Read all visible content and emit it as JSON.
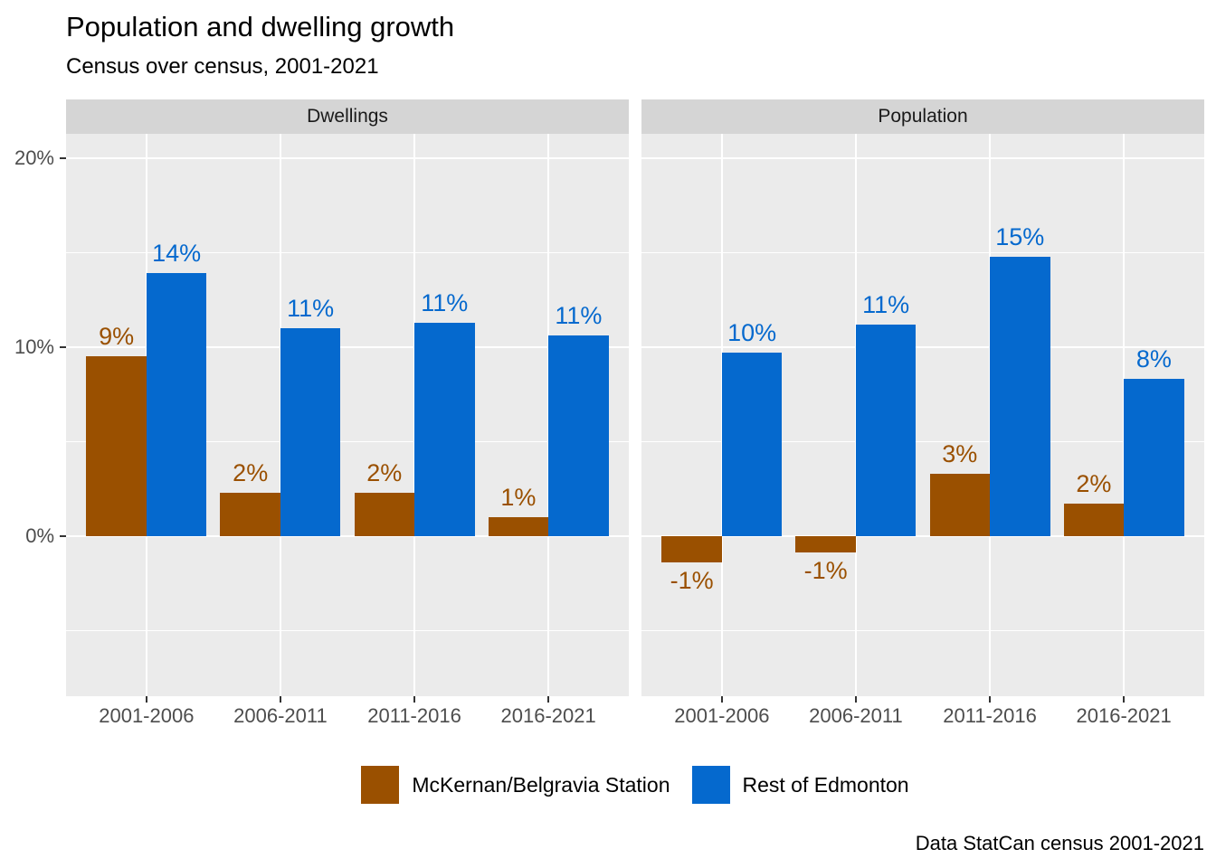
{
  "chart_data": {
    "type": "bar",
    "title": "Population and dwelling growth",
    "subtitle": "Census over census, 2001-2021",
    "caption": "Data StatCan census 2001-2021",
    "categories": [
      "2001-2006",
      "2006-2011",
      "2011-2016",
      "2016-2021"
    ],
    "y_axis": {
      "tick_labels": [
        "20%",
        "10%",
        "0%"
      ],
      "tick_values": [
        20,
        10,
        0
      ],
      "minor_tick_values": [
        15,
        5,
        -5
      ],
      "range": [
        -8.5,
        21.3
      ]
    },
    "facets": [
      {
        "label": "Dwellings",
        "series": [
          {
            "name": "McKernan/Belgravia Station",
            "values": [
              9.5,
              2.3,
              2.3,
              1.0
            ],
            "labels": [
              "9%",
              "2%",
              "2%",
              "1%"
            ]
          },
          {
            "name": "Rest of Edmonton",
            "values": [
              13.9,
              11.0,
              11.3,
              10.6
            ],
            "labels": [
              "14%",
              "11%",
              "11%",
              "11%"
            ]
          }
        ]
      },
      {
        "label": "Population",
        "series": [
          {
            "name": "McKernan/Belgravia Station",
            "values": [
              -1.4,
              -0.9,
              3.3,
              1.7
            ],
            "labels": [
              "-1%",
              "-1%",
              "3%",
              "2%"
            ]
          },
          {
            "name": "Rest of Edmonton",
            "values": [
              9.7,
              11.2,
              14.8,
              8.3
            ],
            "labels": [
              "10%",
              "11%",
              "15%",
              "8%"
            ]
          }
        ]
      }
    ],
    "legend": [
      {
        "label": "McKernan/Belgravia Station",
        "color": "#9A5000"
      },
      {
        "label": "Rest of Edmonton",
        "color": "#0569CE"
      }
    ],
    "colors": {
      "mckernan": "#9A5000",
      "rest_of_edmonton": "#0569CE",
      "panel_bg": "#EBEBEB",
      "strip_bg": "#D5D5D5",
      "grid": "#FFFFFF",
      "axis_text": "#4D4D4D",
      "tick_mark": "#333333"
    },
    "layout_hints": {
      "grid": "on",
      "legend_position": "bottom",
      "facet_layout": "columns"
    }
  }
}
